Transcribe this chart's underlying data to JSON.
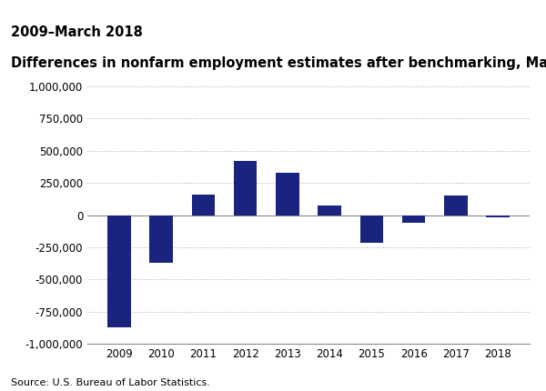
{
  "title_line1": "Differences in nonfarm employment estimates after benchmarking, March",
  "title_line2": "2009–March 2018",
  "categories": [
    "2009",
    "2010",
    "2011",
    "2012",
    "2013",
    "2014",
    "2015",
    "2016",
    "2017",
    "2018"
  ],
  "values": [
    -870000,
    -370000,
    160000,
    420000,
    330000,
    75000,
    -215000,
    -60000,
    150000,
    -20000
  ],
  "bar_color": "#1a237e",
  "ylim": [
    -1000000,
    1000000
  ],
  "yticks": [
    -1000000,
    -750000,
    -500000,
    -250000,
    0,
    250000,
    500000,
    750000,
    1000000
  ],
  "source_text": "Source: U.S. Bureau of Labor Statistics.",
  "background_color": "#ffffff",
  "grid_color": "#aaaaaa",
  "title_fontsize": 10.5,
  "tick_fontsize": 8.5,
  "source_fontsize": 8.0,
  "bar_width": 0.55
}
